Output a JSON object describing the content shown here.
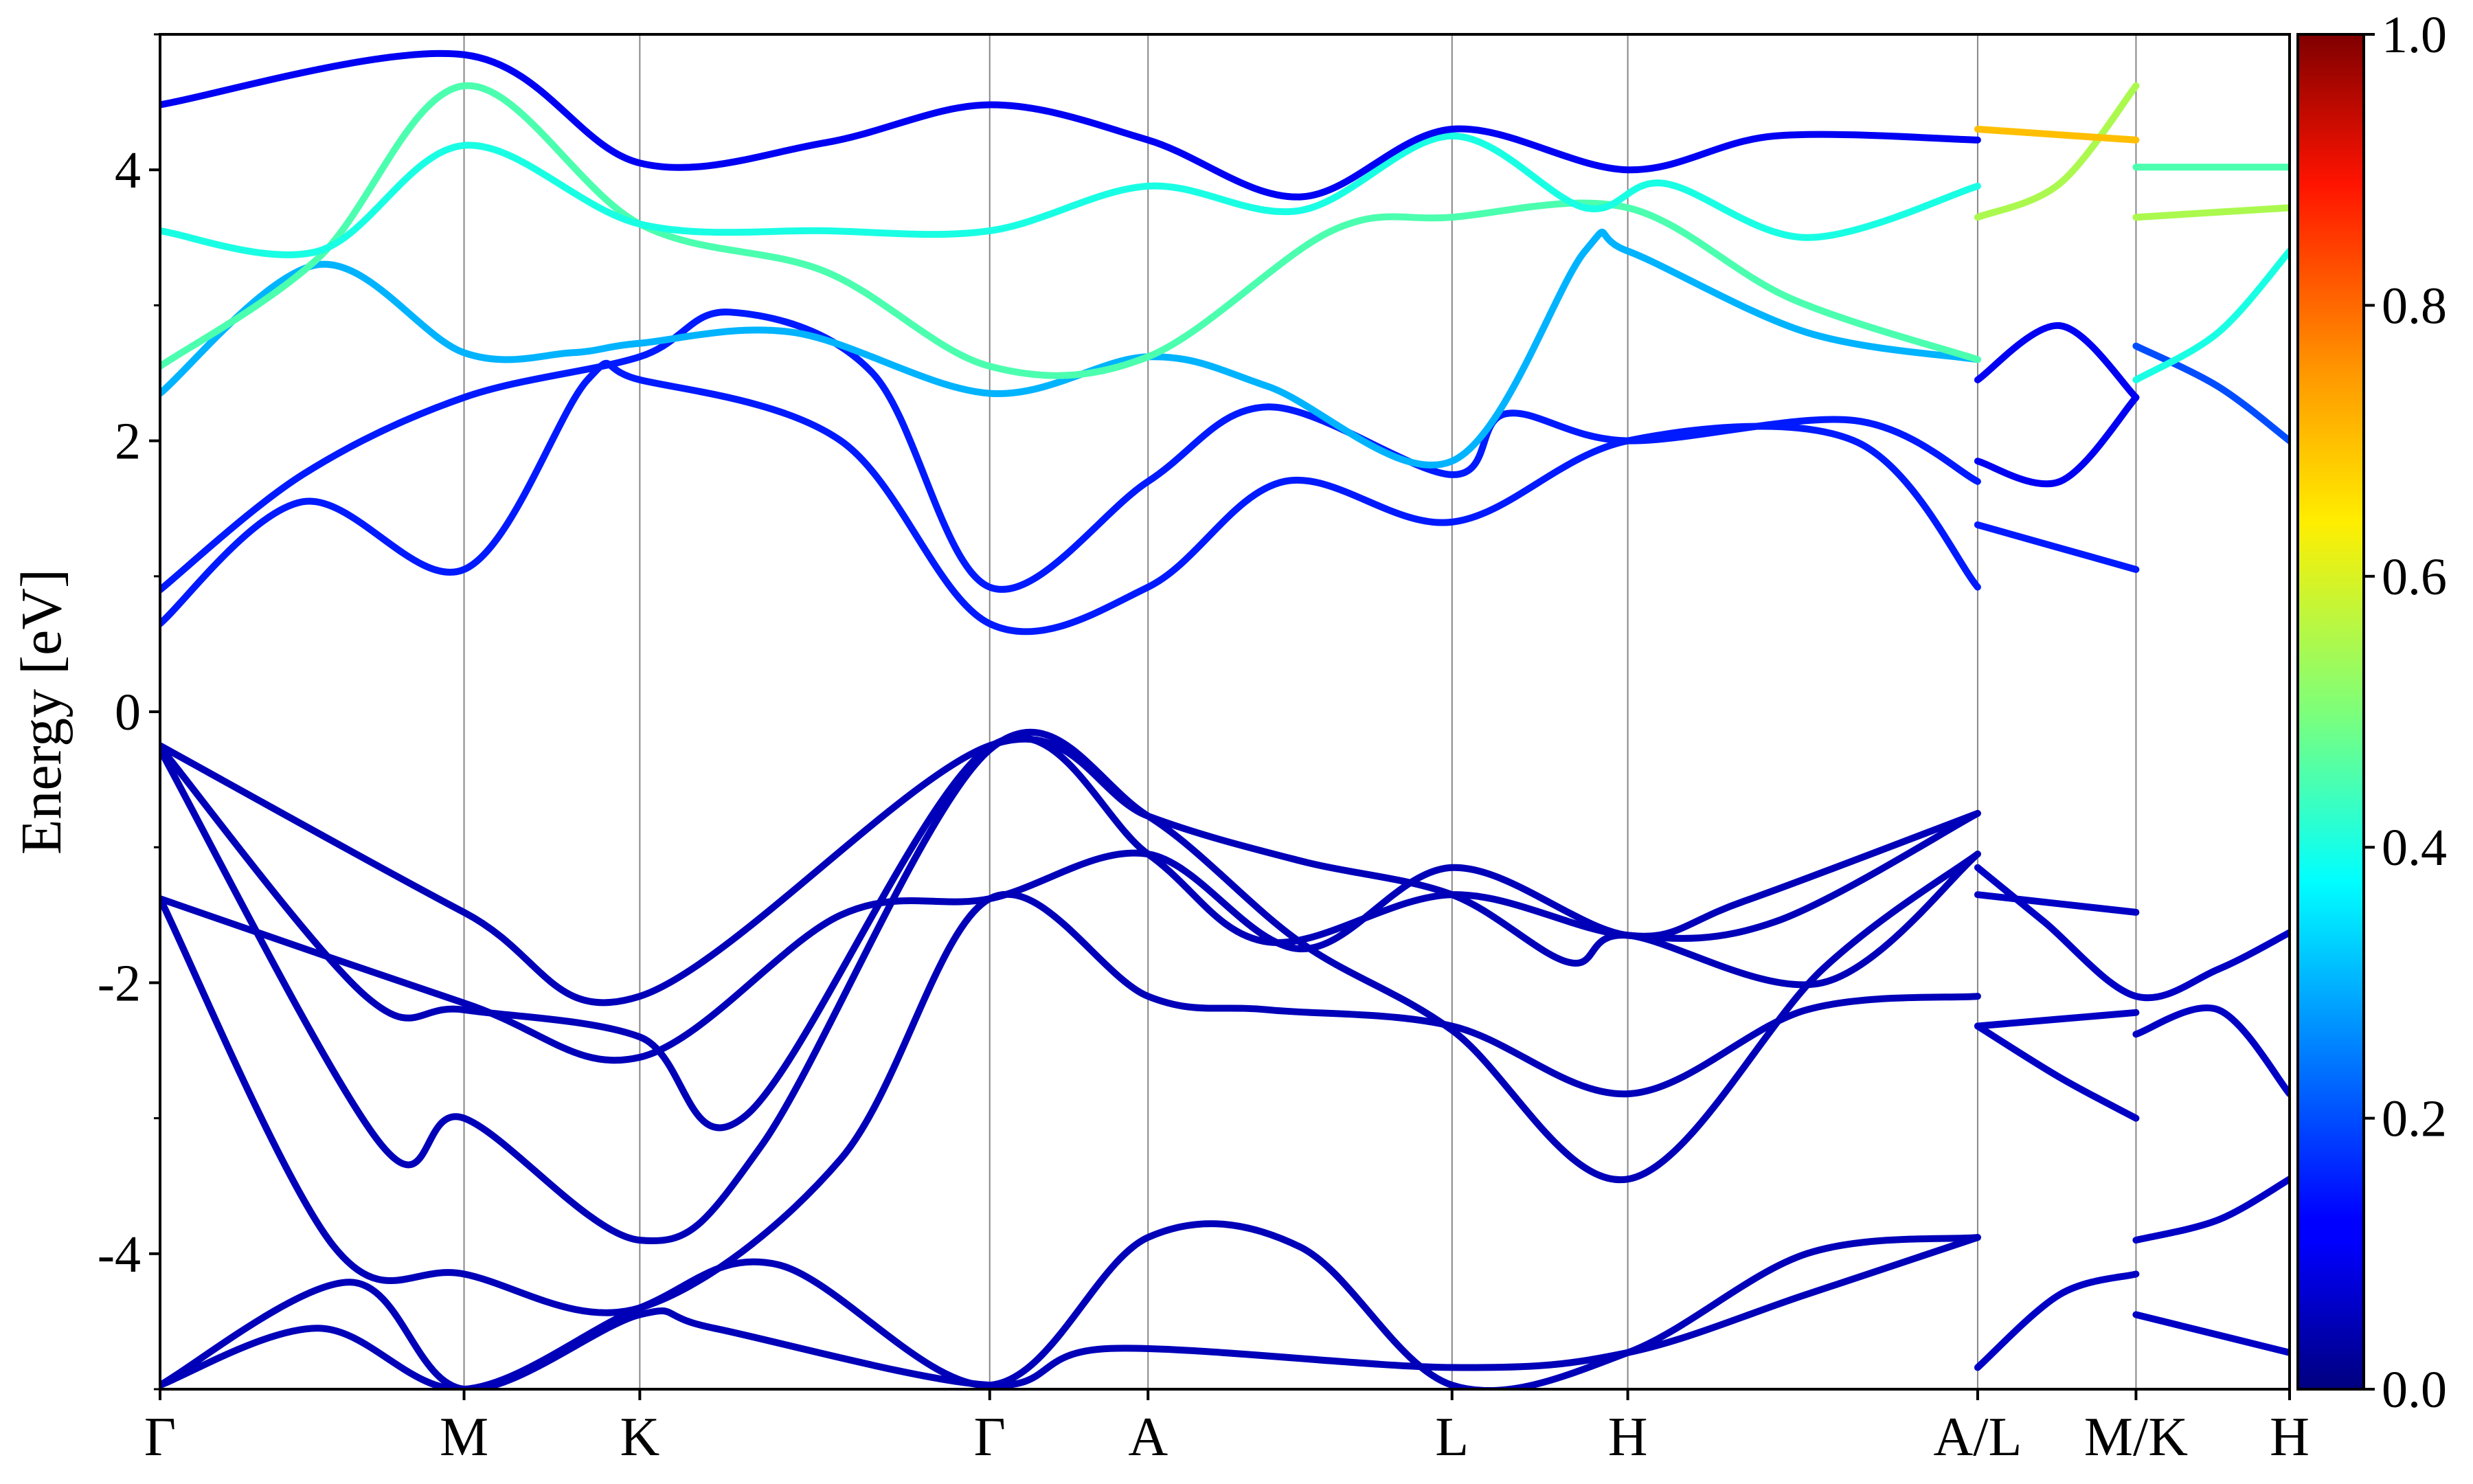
{
  "chart_data": {
    "type": "line",
    "ylabel": "Energy [eV]",
    "ylim": [
      -5,
      5
    ],
    "x_range": [
      0,
      13.45
    ],
    "y_ticks": [
      {
        "value": 4,
        "label": "4"
      },
      {
        "value": 2,
        "label": "2"
      },
      {
        "value": 0,
        "label": "0"
      },
      {
        "value": -2,
        "label": "-2"
      },
      {
        "value": -4,
        "label": "-4"
      }
    ],
    "y_minor_ticks": [
      -5,
      -3,
      -1,
      1,
      3,
      5
    ],
    "k_points": [
      {
        "label": "Γ",
        "x": 0
      },
      {
        "label": "M",
        "x": 1.92
      },
      {
        "label": "K",
        "x": 3.03
      },
      {
        "label": "Γ",
        "x": 5.24
      },
      {
        "label": "A",
        "x": 6.24
      },
      {
        "label": "L",
        "x": 8.16
      },
      {
        "label": "H",
        "x": 9.27
      },
      {
        "label": "A/L",
        "x": 11.48
      },
      {
        "label": "M/K",
        "x": 12.48
      },
      {
        "label": "H",
        "x": 13.45
      }
    ],
    "colorbar": {
      "min": 0.0,
      "max": 1.0,
      "colormap": "jet",
      "ticks": [
        {
          "value": 0.0,
          "label": "0.0"
        },
        {
          "value": 0.2,
          "label": "0.2"
        },
        {
          "value": 0.4,
          "label": "0.4"
        },
        {
          "value": 0.6,
          "label": "0.6"
        },
        {
          "value": 0.8,
          "label": "0.8"
        },
        {
          "value": 1.0,
          "label": "1.0"
        }
      ]
    },
    "bands": [
      {
        "points": [
          [
            0,
            -4.97
          ],
          [
            1.0,
            -4.55
          ],
          [
            1.92,
            -5.0
          ],
          [
            3.03,
            -4.4
          ],
          [
            3.9,
            -4.08
          ],
          [
            5.24,
            -4.97
          ],
          [
            6.24,
            -3.88
          ],
          [
            7.2,
            -3.95
          ],
          [
            8.16,
            -4.97
          ],
          [
            9.27,
            -4.73
          ],
          [
            10.4,
            -4.0
          ],
          [
            11.48,
            -3.88
          ]
        ],
        "w": 0.05
      },
      {
        "points": [
          [
            0,
            -4.97
          ],
          [
            1.2,
            -4.21
          ],
          [
            1.92,
            -5.0
          ],
          [
            3.03,
            -4.45
          ],
          [
            3.5,
            -4.55
          ],
          [
            5.24,
            -4.97
          ],
          [
            6.0,
            -4.7
          ],
          [
            8.16,
            -4.84
          ],
          [
            9.27,
            -4.73
          ],
          [
            10.4,
            -4.3
          ],
          [
            11.48,
            -3.88
          ]
        ],
        "w": 0.05
      },
      {
        "points": [
          [
            0,
            -1.38
          ],
          [
            1.1,
            -3.95
          ],
          [
            1.92,
            -4.15
          ],
          [
            3.03,
            -4.4
          ],
          [
            4.3,
            -3.3
          ],
          [
            5.24,
            -1.38
          ],
          [
            6.24,
            -2.1
          ],
          [
            7.0,
            -2.2
          ],
          [
            8.16,
            -2.32
          ],
          [
            9.27,
            -2.82
          ],
          [
            10.4,
            -2.2
          ],
          [
            11.48,
            -2.1
          ]
        ],
        "w": 0.05
      },
      {
        "points": [
          [
            0,
            -0.28
          ],
          [
            1.4,
            -3.2
          ],
          [
            1.92,
            -3.0
          ],
          [
            3.03,
            -3.9
          ],
          [
            3.8,
            -3.2
          ],
          [
            5.24,
            -0.28
          ],
          [
            6.24,
            -0.77
          ],
          [
            7.2,
            -1.7
          ],
          [
            8.16,
            -2.35
          ],
          [
            9.27,
            -3.45
          ],
          [
            10.5,
            -1.9
          ],
          [
            11.48,
            -1.05
          ]
        ],
        "w": 0.05
      },
      {
        "points": [
          [
            0,
            -0.26
          ],
          [
            1.3,
            -2.1
          ],
          [
            1.92,
            -2.2
          ],
          [
            3.03,
            -2.4
          ],
          [
            3.7,
            -2.98
          ],
          [
            5.24,
            -0.26
          ],
          [
            6.24,
            -1.05
          ],
          [
            7.0,
            -1.7
          ],
          [
            8.16,
            -1.35
          ],
          [
            9.27,
            -1.65
          ],
          [
            10.2,
            -1.55
          ],
          [
            11.48,
            -0.75
          ]
        ],
        "w": 0.05
      },
      {
        "points": [
          [
            0,
            -0.25
          ],
          [
            1.92,
            -1.48
          ],
          [
            3.03,
            -2.1
          ],
          [
            5.24,
            -0.25
          ],
          [
            6.24,
            -0.77
          ],
          [
            7.2,
            -1.1
          ],
          [
            8.16,
            -1.35
          ],
          [
            8.9,
            -1.85
          ],
          [
            9.27,
            -1.65
          ],
          [
            10.5,
            -2.0
          ],
          [
            11.48,
            -1.05
          ]
        ],
        "w": 0.05
      },
      {
        "points": [
          [
            0,
            -1.38
          ],
          [
            1.92,
            -2.15
          ],
          [
            3.03,
            -2.55
          ],
          [
            4.3,
            -1.5
          ],
          [
            5.24,
            -1.38
          ],
          [
            6.24,
            -1.05
          ],
          [
            7.2,
            -1.75
          ],
          [
            8.16,
            -1.15
          ],
          [
            9.27,
            -1.65
          ],
          [
            10.0,
            -1.4
          ],
          [
            11.48,
            -0.75
          ]
        ],
        "w": 0.05
      },
      {
        "points": [
          [
            11.48,
            -1.15
          ],
          [
            11.9,
            -1.55
          ],
          [
            12.48,
            -2.1
          ],
          [
            13.0,
            -1.9
          ],
          [
            13.45,
            -1.63
          ]
        ],
        "w": 0.06
      },
      {
        "points": [
          [
            11.48,
            -1.35
          ],
          [
            12.48,
            -1.48
          ]
        ],
        "w": 0.06
      },
      {
        "points": [
          [
            11.48,
            -2.32
          ],
          [
            12.48,
            -2.22
          ]
        ],
        "w": 0.06
      },
      {
        "points": [
          [
            11.48,
            -2.32
          ],
          [
            12.0,
            -2.7
          ],
          [
            12.48,
            -3.0
          ]
        ],
        "w": 0.06
      },
      {
        "points": [
          [
            11.48,
            -4.84
          ],
          [
            12.0,
            -4.3
          ],
          [
            12.48,
            -4.15
          ]
        ],
        "w": 0.06
      },
      {
        "points": [
          [
            12.48,
            -2.38
          ],
          [
            13.0,
            -2.2
          ],
          [
            13.45,
            -2.82
          ]
        ],
        "w": 0.06
      },
      {
        "points": [
          [
            12.48,
            -3.9
          ],
          [
            13.0,
            -3.75
          ],
          [
            13.45,
            -3.45
          ]
        ],
        "w": 0.06
      },
      {
        "points": [
          [
            12.48,
            -4.45
          ],
          [
            13.0,
            -4.6
          ],
          [
            13.45,
            -4.73
          ]
        ],
        "w": 0.06
      },
      {
        "points": [
          [
            0,
            0.65
          ],
          [
            0.9,
            1.55
          ],
          [
            1.92,
            1.05
          ],
          [
            2.7,
            2.45
          ],
          [
            3.03,
            2.45
          ],
          [
            4.3,
            2.0
          ],
          [
            5.24,
            0.65
          ],
          [
            6.24,
            0.92
          ],
          [
            7.1,
            1.7
          ],
          [
            8.16,
            1.4
          ],
          [
            9.27,
            2.0
          ],
          [
            10.7,
            2.0
          ],
          [
            11.48,
            0.92
          ]
        ],
        "w": 0.15
      },
      {
        "points": [
          [
            0,
            0.9
          ],
          [
            0.9,
            1.75
          ],
          [
            1.92,
            2.32
          ],
          [
            3.03,
            2.62
          ],
          [
            3.6,
            2.95
          ],
          [
            4.5,
            2.5
          ],
          [
            5.24,
            0.92
          ],
          [
            6.24,
            1.7
          ],
          [
            7.0,
            2.25
          ],
          [
            8.16,
            1.75
          ],
          [
            8.5,
            2.2
          ],
          [
            9.27,
            2.0
          ],
          [
            10.7,
            2.15
          ],
          [
            11.48,
            1.7
          ]
        ],
        "w": 0.15
      },
      {
        "points": [
          [
            0,
            2.35
          ],
          [
            1.0,
            3.3
          ],
          [
            1.92,
            2.65
          ],
          [
            2.6,
            2.65
          ],
          [
            3.03,
            2.72
          ],
          [
            4.0,
            2.8
          ],
          [
            5.24,
            2.35
          ],
          [
            6.24,
            2.62
          ],
          [
            7.0,
            2.4
          ],
          [
            8.16,
            1.85
          ],
          [
            9.0,
            3.4
          ],
          [
            9.27,
            3.4
          ],
          [
            10.4,
            2.8
          ],
          [
            11.48,
            2.6
          ]
        ],
        "w": 0.3
      },
      {
        "points": [
          [
            0,
            2.55
          ],
          [
            1.0,
            3.35
          ],
          [
            1.92,
            4.62
          ],
          [
            3.03,
            3.6
          ],
          [
            4.2,
            3.25
          ],
          [
            5.24,
            2.55
          ],
          [
            6.24,
            2.62
          ],
          [
            7.4,
            3.55
          ],
          [
            8.16,
            3.65
          ],
          [
            9.27,
            3.72
          ],
          [
            10.3,
            3.05
          ],
          [
            11.48,
            2.6
          ]
        ],
        "w": 0.45
      },
      {
        "points": [
          [
            0,
            3.55
          ],
          [
            1.0,
            3.4
          ],
          [
            1.92,
            4.18
          ],
          [
            3.03,
            3.6
          ],
          [
            4.2,
            3.55
          ],
          [
            5.24,
            3.55
          ],
          [
            6.24,
            3.88
          ],
          [
            7.2,
            3.7
          ],
          [
            8.16,
            4.25
          ],
          [
            9.0,
            3.72
          ],
          [
            9.5,
            3.9
          ],
          [
            10.4,
            3.5
          ],
          [
            11.48,
            3.88
          ]
        ],
        "w": 0.4
      },
      {
        "points": [
          [
            0,
            4.48
          ],
          [
            1.92,
            4.85
          ],
          [
            3.03,
            4.05
          ],
          [
            4.2,
            4.2
          ],
          [
            5.24,
            4.48
          ],
          [
            6.24,
            4.22
          ],
          [
            7.2,
            3.8
          ],
          [
            8.16,
            4.3
          ],
          [
            9.27,
            4.0
          ],
          [
            10.2,
            4.25
          ],
          [
            11.48,
            4.22
          ]
        ],
        "w": 0.1
      },
      {
        "points": [
          [
            11.48,
            3.65
          ],
          [
            12.0,
            3.9
          ],
          [
            12.48,
            4.62
          ]
        ],
        "w": 0.55
      },
      {
        "points": [
          [
            11.48,
            4.3
          ],
          [
            12.48,
            4.22
          ]
        ],
        "w": 0.7
      },
      {
        "points": [
          [
            11.48,
            2.45
          ],
          [
            12.0,
            2.85
          ],
          [
            12.48,
            2.32
          ]
        ],
        "w": 0.1
      },
      {
        "points": [
          [
            11.48,
            1.85
          ],
          [
            12.0,
            1.7
          ],
          [
            12.48,
            2.32
          ]
        ],
        "w": 0.1
      },
      {
        "points": [
          [
            11.48,
            1.38
          ],
          [
            12.48,
            1.05
          ]
        ],
        "w": 0.15
      },
      {
        "points": [
          [
            12.48,
            2.7
          ],
          [
            13.0,
            2.4
          ],
          [
            13.45,
            2.0
          ]
        ],
        "w": 0.2
      },
      {
        "points": [
          [
            12.48,
            3.65
          ],
          [
            13.45,
            3.72
          ]
        ],
        "w": 0.55
      },
      {
        "points": [
          [
            12.48,
            4.02
          ],
          [
            13.45,
            4.02
          ]
        ],
        "w": 0.45
      },
      {
        "points": [
          [
            12.48,
            2.45
          ],
          [
            13.0,
            2.8
          ],
          [
            13.45,
            3.4
          ]
        ],
        "w": 0.4
      }
    ]
  }
}
